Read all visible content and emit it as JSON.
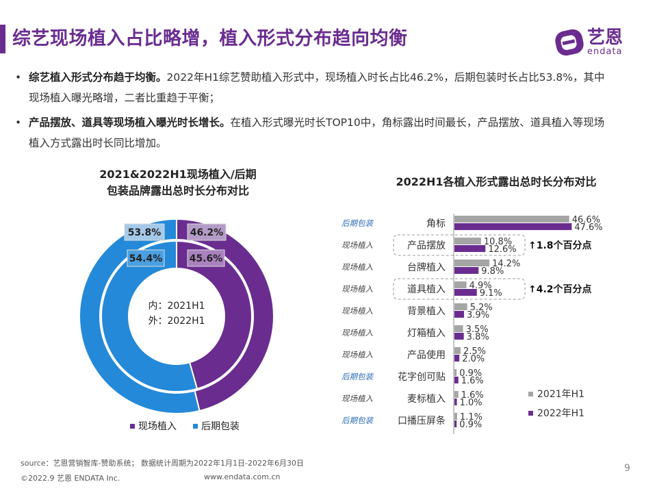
{
  "header": {
    "title": "综艺现场植入占比略增，植入形式分布趋向均衡",
    "logo_text": "艺恩",
    "logo_sub": "endata"
  },
  "bullets": [
    {
      "bold": "综艺植入形式分布趋于均衡。",
      "text": "2022年H1综艺赞助植入形式中，现场植入时长占比46.2%，后期包装时长占比53.8%，其中现场植入曝光略增，二者比重趋于平衡；"
    },
    {
      "bold": "产品摆放、道具等现场植入曝光时长增长。",
      "text": "在植入形式曝光时长TOP10中，角标露出时间最长，产品摆放、道具植入等现场植入方式露出时长同比增加。"
    }
  ],
  "colors": {
    "purple": "#6a2d8f",
    "blue": "#2489d8",
    "gray": "#a5a5a5",
    "label_blue": "#2f6db4"
  },
  "chart_data": [
    {
      "type": "pie",
      "title_line1": "2021&2022H1现场植入/后期",
      "title_line2": "包装品牌露出总时长分布对比",
      "center_line1": "内：2021H1",
      "center_line2": "外：2022H1",
      "categories": [
        "现场植入",
        "后期包装"
      ],
      "series": [
        {
          "values": [
            46.2,
            53.8
          ],
          "labels": [
            "46.2%",
            "53.8%"
          ]
        },
        {
          "values": [
            45.6,
            54.4
          ],
          "labels": [
            "45.6%",
            "54.4%"
          ]
        }
      ],
      "legend": [
        "现场植入",
        "后期包装"
      ],
      "legend_position": "bottom"
    },
    {
      "type": "bar",
      "title": "2022H1各植入形式露出总时长分布对比",
      "categories": [
        "角标",
        "产品摆放",
        "台牌植入",
        "道具植入",
        "背景植入",
        "灯箱植入",
        "产品使用",
        "花字创可贴",
        "麦标植入",
        "口播压屏条"
      ],
      "category_types": [
        "后期包装",
        "现场植入",
        "现场植入",
        "现场植入",
        "现场植入",
        "现场植入",
        "现场植入",
        "后期包装",
        "现场植入",
        "后期包装"
      ],
      "series": [
        {
          "name": "2021年H1",
          "values": [
            46.6,
            10.8,
            14.2,
            4.9,
            5.2,
            3.5,
            2.5,
            0.9,
            1.6,
            1.1
          ],
          "labels": [
            "46.6%",
            "10.8%",
            "14.2%",
            "4.9%",
            "5.2%",
            "3.5%",
            "2.5%",
            "0.9%",
            "1.6%",
            "1.1%"
          ]
        },
        {
          "name": "2022年H1",
          "values": [
            47.6,
            12.6,
            9.8,
            9.1,
            3.9,
            3.8,
            2.0,
            1.6,
            1.0,
            0.9
          ],
          "labels": [
            "47.6%",
            "12.6%",
            "9.8%",
            "9.1%",
            "3.9%",
            "3.8%",
            "2.0%",
            "1.6%",
            "1.0%",
            "0.9%"
          ]
        }
      ],
      "annotations": [
        {
          "category": "产品摆放",
          "text": "↑1.8个百分点"
        },
        {
          "category": "道具植入",
          "text": "↑4.2个百分点"
        }
      ],
      "legend_position": "bottom-right",
      "orientation": "horizontal"
    }
  ],
  "footer": {
    "source": "source：艺恩营销智库-赞助系统； 数据统计周期为2022年1月1日-2022年6月30日",
    "copyright": "©2022.9 艺恩 ENDATA Inc.",
    "website": "www.endata.com.cn",
    "page": "9"
  }
}
